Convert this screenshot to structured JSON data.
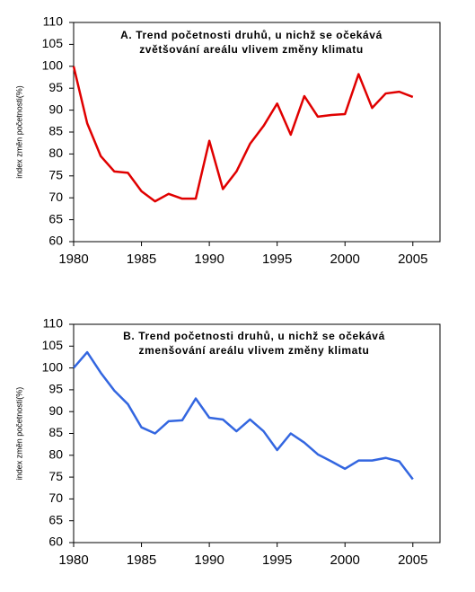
{
  "chart_data": [
    {
      "type": "line",
      "title": [
        "A. Trend početnosti druhů, u nichž se očekává",
        "zvětšování areálu vlivem změny klimatu"
      ],
      "y_label": "index změn početnosti(%)",
      "x": [
        1980,
        1981,
        1982,
        1983,
        1984,
        1985,
        1986,
        1987,
        1988,
        1989,
        1990,
        1991,
        1992,
        1993,
        1994,
        1995,
        1996,
        1997,
        1998,
        1999,
        2000,
        2001,
        2002,
        2003,
        2004,
        2005
      ],
      "series": [
        {
          "name": "A",
          "color": "#e00000",
          "values": [
            100,
            87,
            79.5,
            76,
            75.7,
            71.5,
            69.2,
            70.9,
            69.8,
            69.8,
            83,
            72,
            76,
            82.3,
            86.4,
            91.5,
            84.4,
            93.2,
            88.5,
            88.9,
            89.1,
            98.2,
            90.5,
            93.8,
            94.2,
            93
          ]
        }
      ],
      "xlim": [
        1980,
        2007
      ],
      "xticks": [
        1980,
        1985,
        1990,
        1995,
        2000,
        2005
      ],
      "ylim": [
        60,
        110
      ],
      "yticks": [
        60,
        65,
        70,
        75,
        80,
        85,
        90,
        95,
        100,
        105,
        110
      ]
    },
    {
      "type": "line",
      "title": [
        "B. Trend početnosti druhů, u nichž se očekává",
        "zmenšování areálu vlivem změny klimatu"
      ],
      "y_label": "index změn početnosti(%)",
      "x": [
        1980,
        1981,
        1982,
        1983,
        1984,
        1985,
        1986,
        1987,
        1988,
        1989,
        1990,
        1991,
        1992,
        1993,
        1994,
        1995,
        1996,
        1997,
        1998,
        1999,
        2000,
        2001,
        2002,
        2003,
        2004,
        2005
      ],
      "series": [
        {
          "name": "B",
          "color": "#3366e0",
          "values": [
            100,
            103.6,
            98.9,
            94.8,
            91.7,
            86.4,
            85,
            87.8,
            88,
            93,
            88.6,
            88.2,
            85.5,
            88.2,
            85.5,
            81.2,
            85,
            82.9,
            80.2,
            78.6,
            76.9,
            78.8,
            78.8,
            79.4,
            78.6,
            74.5
          ]
        }
      ],
      "xlim": [
        1980,
        2007
      ],
      "xticks": [
        1980,
        1985,
        1990,
        1995,
        2000,
        2005
      ],
      "ylim": [
        60,
        110
      ],
      "yticks": [
        60,
        65,
        70,
        75,
        80,
        85,
        90,
        95,
        100,
        105,
        110
      ]
    }
  ]
}
